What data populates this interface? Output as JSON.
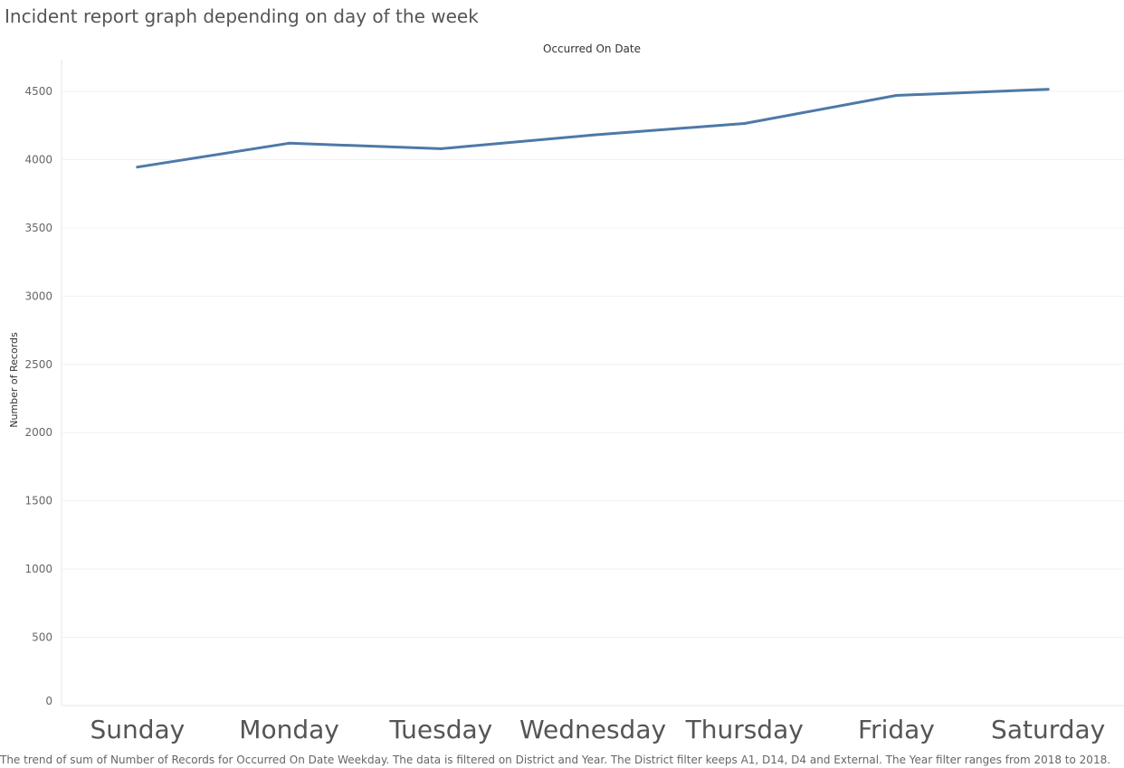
{
  "chart_data": {
    "type": "line",
    "title": "Incident report graph depending on day of the week",
    "column_header": "Occurred On Date",
    "ylabel": "Number of Records",
    "categories": [
      "Sunday",
      "Monday",
      "Tuesday",
      "Wednesday",
      "Thursday",
      "Friday",
      "Saturday"
    ],
    "series": [
      {
        "values": [
          3945,
          4120,
          4080,
          4180,
          4265,
          4470,
          4515
        ],
        "color": "#4e79a7"
      }
    ],
    "ylim": [
      0,
      4750
    ],
    "yticks": [
      0,
      500,
      1000,
      1500,
      2000,
      2500,
      3000,
      3500,
      4000,
      4500
    ],
    "grid": true,
    "caption": "The trend of sum of Number of Records for Occurred On Date Weekday. The data is filtered on District and Year. The District filter keeps A1, D14, D4 and External. The Year filter ranges from 2018 to 2018."
  }
}
